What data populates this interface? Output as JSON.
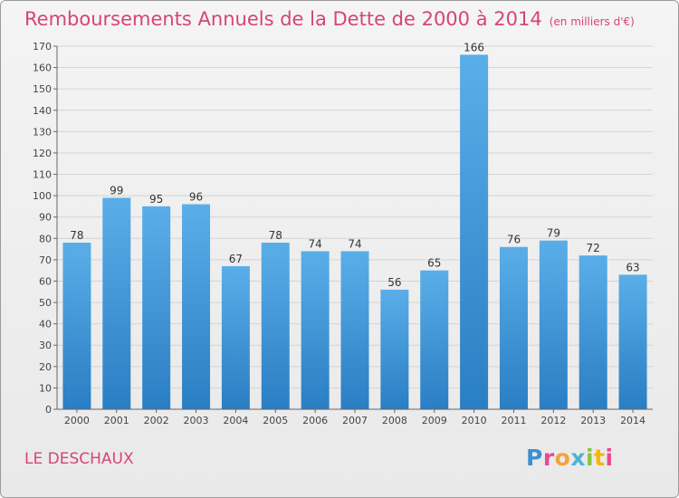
{
  "title": "Remboursements Annuels de la Dette de 2000 à 2014",
  "title_unit": "(en milliers d'€)",
  "town": "LE DESCHAUX",
  "logo": [
    "P",
    "r",
    "o",
    "x",
    "i",
    "t",
    "i"
  ],
  "colors": {
    "title": "#d6447a",
    "bar_top": "#5aaee8",
    "bar_bottom": "#2a7ec3"
  },
  "chart_data": {
    "type": "bar",
    "title": "Remboursements Annuels de la Dette de 2000 à 2014",
    "categories": [
      "2000",
      "2001",
      "2002",
      "2003",
      "2004",
      "2005",
      "2006",
      "2007",
      "2008",
      "2009",
      "2010",
      "2011",
      "2012",
      "2013",
      "2014"
    ],
    "values": [
      78,
      99,
      95,
      96,
      67,
      78,
      74,
      74,
      56,
      65,
      166,
      76,
      79,
      72,
      63
    ],
    "ylim": [
      0,
      170
    ],
    "yticks": [
      0,
      10,
      20,
      30,
      40,
      50,
      60,
      70,
      80,
      90,
      100,
      110,
      120,
      130,
      140,
      150,
      160,
      170
    ],
    "grid": true,
    "data_labels": true
  }
}
